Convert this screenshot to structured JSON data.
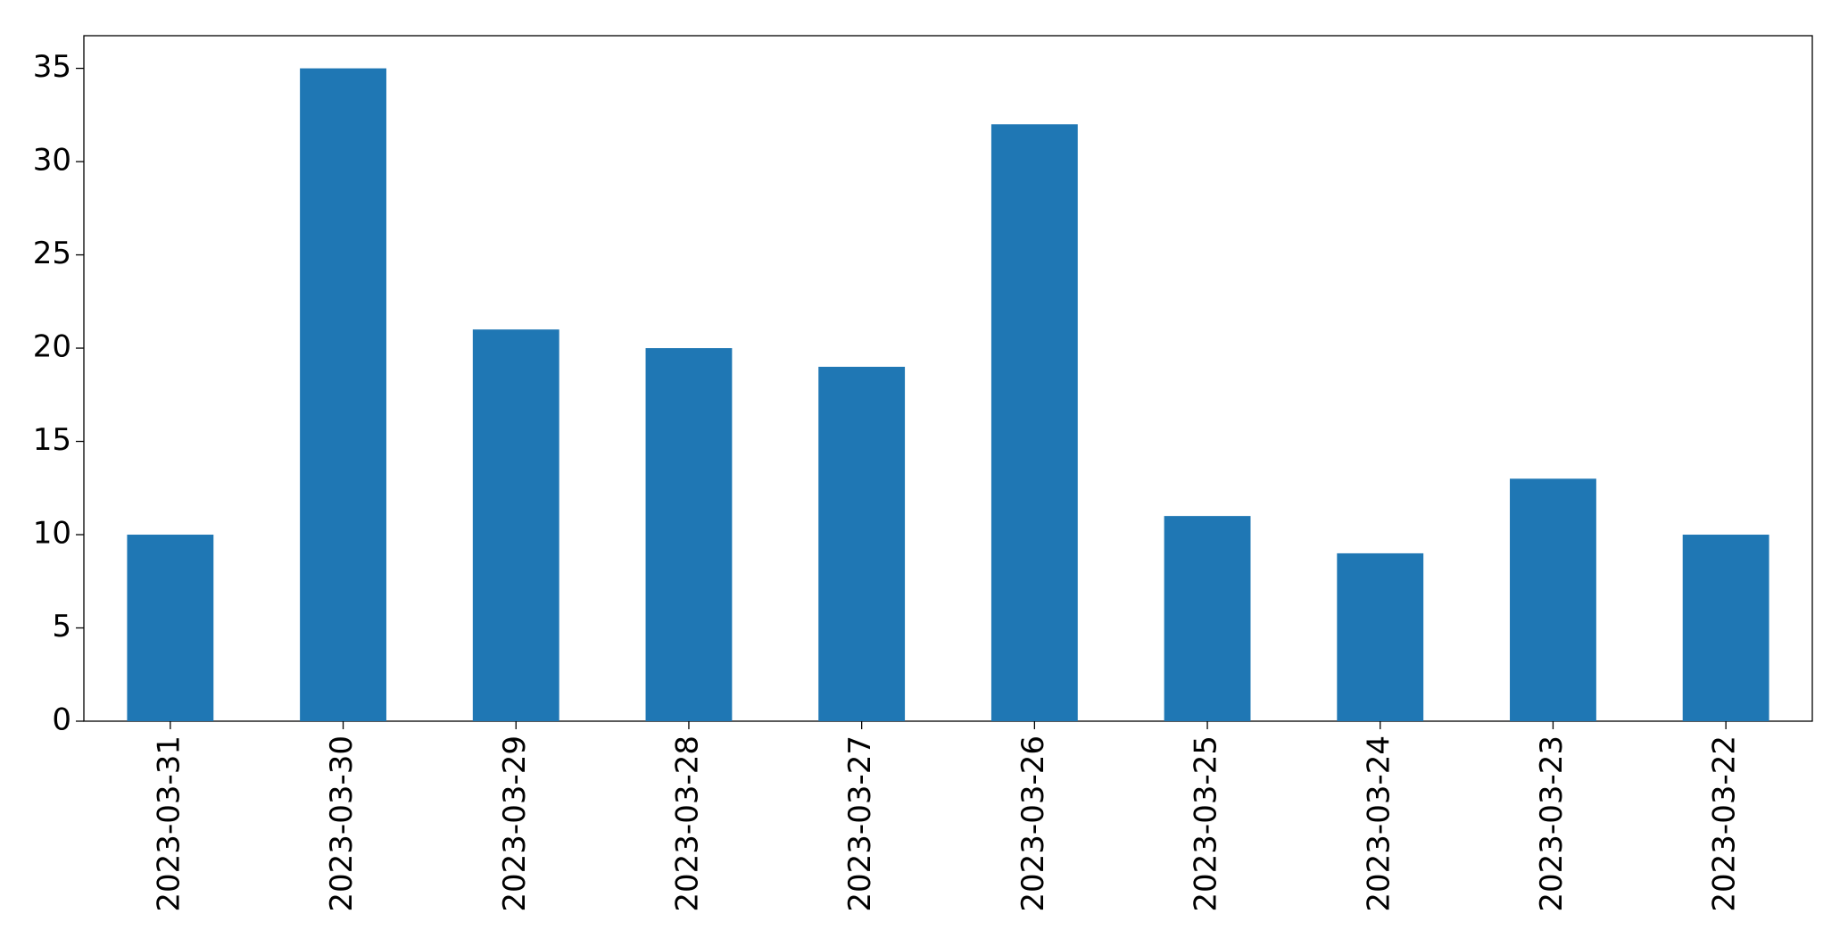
{
  "chart_data": {
    "type": "bar",
    "categories": [
      "2023-03-31",
      "2023-03-30",
      "2023-03-29",
      "2023-03-28",
      "2023-03-27",
      "2023-03-26",
      "2023-03-25",
      "2023-03-24",
      "2023-03-23",
      "2023-03-22"
    ],
    "values": [
      10,
      35,
      21,
      20,
      19,
      32,
      11,
      9,
      13,
      10
    ],
    "color": "#1f77b4",
    "ylim": [
      0,
      36.75
    ],
    "yticks": [
      0,
      5,
      10,
      15,
      20,
      25,
      30,
      35
    ],
    "grid": false
  }
}
